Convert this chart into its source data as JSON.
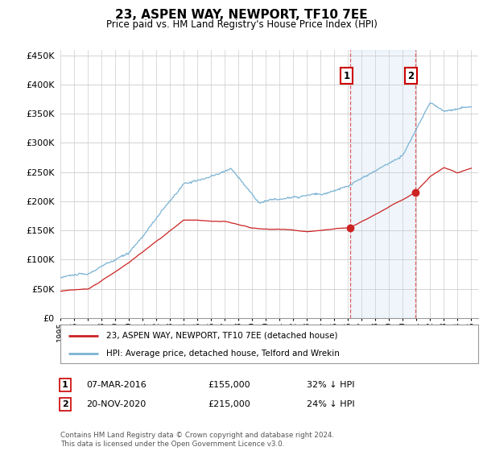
{
  "title": "23, ASPEN WAY, NEWPORT, TF10 7EE",
  "subtitle": "Price paid vs. HM Land Registry's House Price Index (HPI)",
  "ylim": [
    0,
    460000
  ],
  "yticks": [
    0,
    50000,
    100000,
    150000,
    200000,
    250000,
    300000,
    350000,
    400000,
    450000
  ],
  "xlim_start": 1995.0,
  "xlim_end": 2025.5,
  "hpi_color": "#7ab3d4",
  "price_color": "#cc2222",
  "marker1_x": 2016.18,
  "marker1_y": 155000,
  "marker2_x": 2020.9,
  "marker2_y": 215000,
  "vline_color": "#e06060",
  "legend_label1": "23, ASPEN WAY, NEWPORT, TF10 7EE (detached house)",
  "legend_label2": "HPI: Average price, detached house, Telford and Wrekin",
  "table_row1": [
    "1",
    "07-MAR-2016",
    "£155,000",
    "32% ↓ HPI"
  ],
  "table_row2": [
    "2",
    "20-NOV-2020",
    "£215,000",
    "24% ↓ HPI"
  ],
  "footnote": "Contains HM Land Registry data © Crown copyright and database right 2024.\nThis data is licensed under the Open Government Licence v3.0.",
  "background_color": "#ffffff",
  "grid_color": "#cccccc",
  "highlight_fill": "#ddeeff"
}
